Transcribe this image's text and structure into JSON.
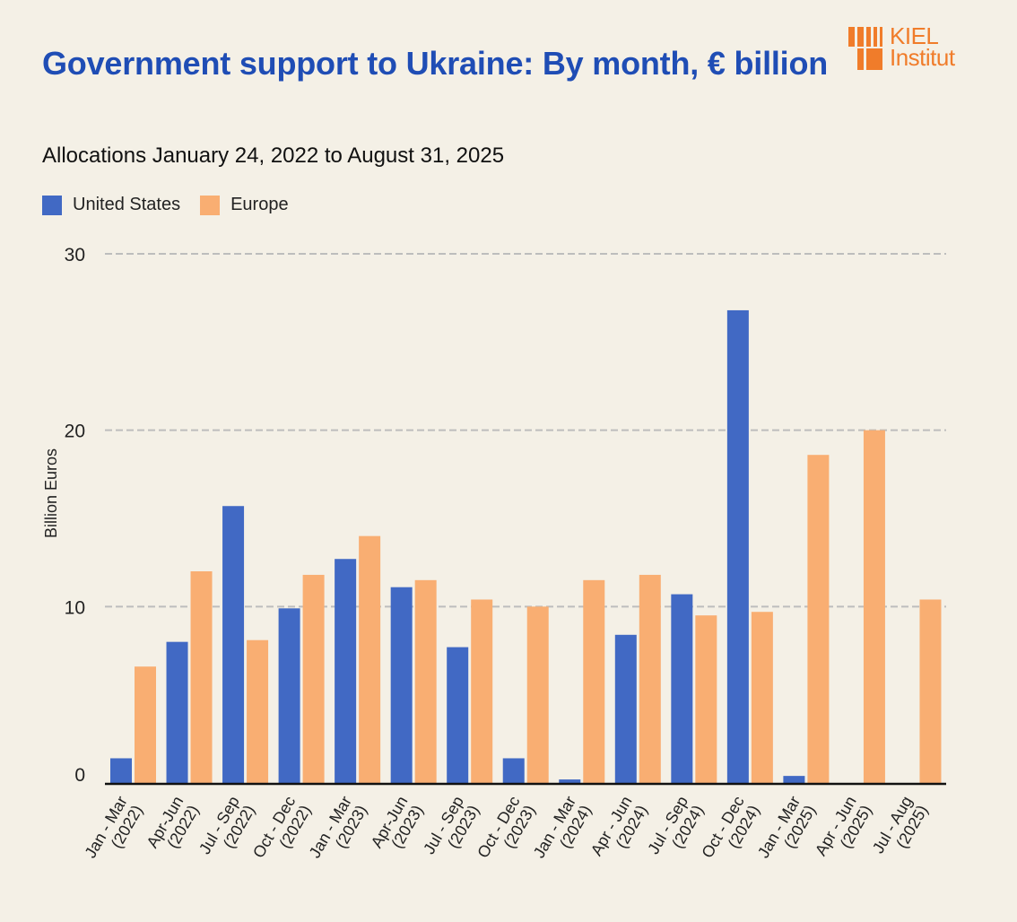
{
  "header": {
    "title": "Government support to Ukraine: By month, € billion",
    "subtitle": "Allocations January 24, 2022 to August 31, 2025",
    "logo_line1": "KIEL",
    "logo_line2": "Institut"
  },
  "colors": {
    "background": "#F4F0E6",
    "title": "#1F4DB5",
    "united_states": "#4169C4",
    "europe": "#F9AE72",
    "logo": "#F07C2A",
    "gridline": "#BDBDBD",
    "axis": "#111111"
  },
  "legend": {
    "items": [
      {
        "label": "United States",
        "color": "#4169C4"
      },
      {
        "label": "Europe",
        "color": "#F9AE72"
      }
    ]
  },
  "chart_data": {
    "type": "bar",
    "title": "Government support to Ukraine: By month, € billion",
    "subtitle": "Allocations January 24, 2022 to August 31, 2025",
    "xlabel": "",
    "ylabel": "Billion Euros",
    "ylim": [
      0,
      30
    ],
    "yticks": [
      0,
      10,
      20,
      30
    ],
    "grid": true,
    "legend_position": "top-left",
    "categories": [
      [
        "Jan - Mar",
        "(2022)"
      ],
      [
        "Apr-Jun",
        "(2022)"
      ],
      [
        "Jul - Sep",
        "(2022)"
      ],
      [
        "Oct - Dec",
        "(2022)"
      ],
      [
        "Jan - Mar",
        "(2023)"
      ],
      [
        "Apr-Jun",
        "(2023)"
      ],
      [
        "Jul - Sep",
        "(2023)"
      ],
      [
        "Oct - Dec",
        "(2023)"
      ],
      [
        "Jan - Mar",
        "(2024)"
      ],
      [
        "Apr - Jun",
        "(2024)"
      ],
      [
        "Jul - Sep",
        "(2024)"
      ],
      [
        "Oct - Dec",
        "(2024)"
      ],
      [
        "Jan - Mar",
        "(2025)"
      ],
      [
        "Apr - Jun",
        "(2025)"
      ],
      [
        "Jul - Aug",
        "(2025)"
      ]
    ],
    "series": [
      {
        "name": "United States",
        "color": "#4169C4",
        "values": [
          1.4,
          8.0,
          15.7,
          9.9,
          12.7,
          11.1,
          7.7,
          1.4,
          0.2,
          8.4,
          10.7,
          26.8,
          0.4,
          0,
          0
        ]
      },
      {
        "name": "Europe",
        "color": "#F9AE72",
        "values": [
          6.6,
          12.0,
          8.1,
          11.8,
          14.0,
          11.5,
          10.4,
          10.0,
          11.5,
          11.8,
          9.5,
          9.7,
          18.6,
          20.0,
          10.4
        ]
      }
    ]
  }
}
